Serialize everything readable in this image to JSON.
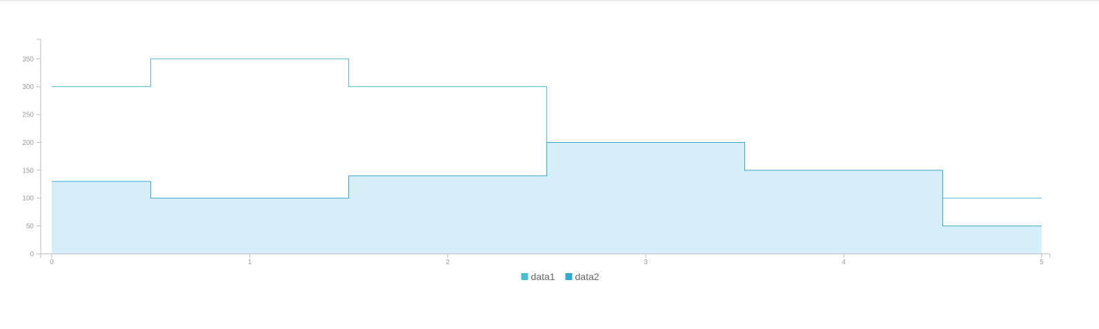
{
  "chart_data": {
    "type": "area",
    "subtype": "step",
    "x": [
      0,
      1,
      2,
      3,
      4,
      5
    ],
    "series": [
      {
        "name": "data1",
        "values": [
          300,
          350,
          300,
          0,
          0,
          100
        ],
        "color": "#49bcd2",
        "area": false
      },
      {
        "name": "data2",
        "values": [
          130,
          100,
          140,
          200,
          150,
          50
        ],
        "color": "#33a8cf",
        "area": true,
        "fill": "#d6eef7"
      }
    ],
    "xticks": [
      "0",
      "1",
      "2",
      "3",
      "4",
      "5"
    ],
    "yticks": [
      "0",
      "50",
      "100",
      "150",
      "200",
      "250",
      "300",
      "350"
    ],
    "xlim": [
      0,
      5
    ],
    "ylim": [
      0,
      385
    ],
    "grid": false,
    "legend_position": "bottom-center",
    "title": "",
    "xlabel": "",
    "ylabel": ""
  }
}
